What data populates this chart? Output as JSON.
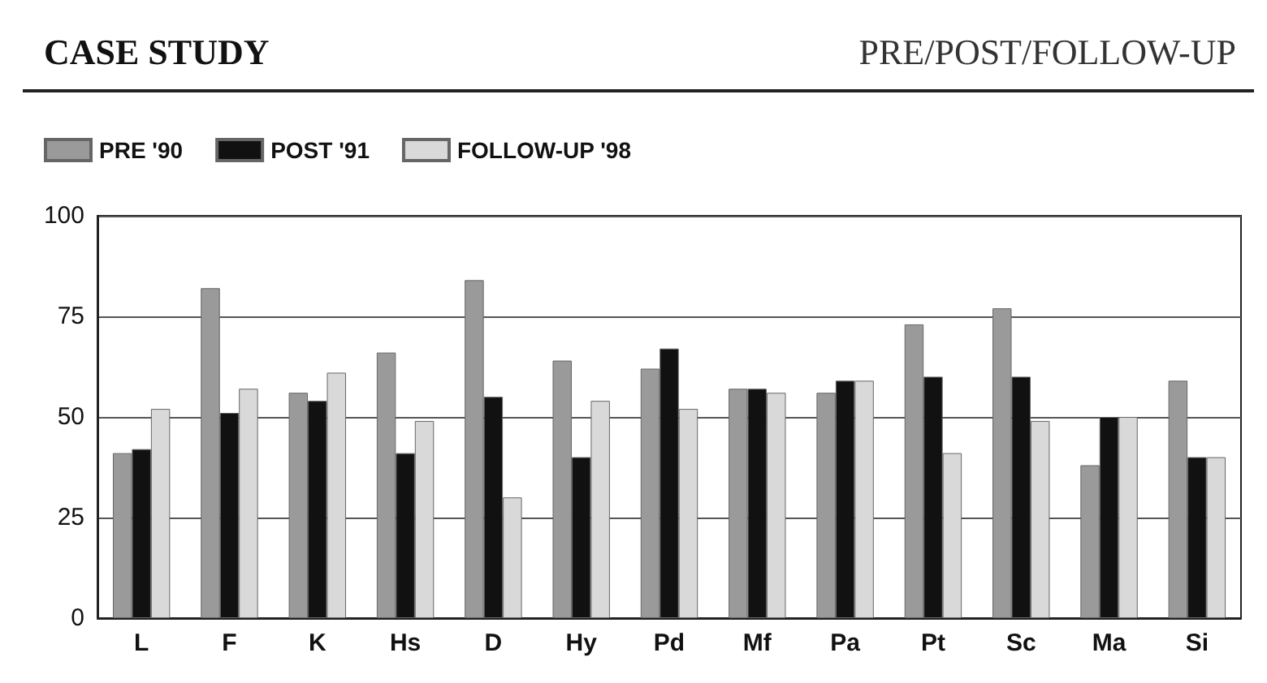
{
  "chart_data": {
    "type": "bar",
    "title": "CASE STUDY",
    "subtitle": "PRE/POST/FOLLOW-UP",
    "categories": [
      "L",
      "F",
      "K",
      "Hs",
      "D",
      "Hy",
      "Pd",
      "Mf",
      "Pa",
      "Pt",
      "Sc",
      "Ma",
      "Si"
    ],
    "series": [
      {
        "name": "PRE '90",
        "color": "#9a9a9a",
        "values": [
          41,
          82,
          56,
          66,
          84,
          64,
          62,
          57,
          56,
          73,
          77,
          38,
          59
        ]
      },
      {
        "name": "POST '91",
        "color": "#111111",
        "values": [
          42,
          51,
          54,
          41,
          55,
          40,
          67,
          57,
          59,
          60,
          60,
          50,
          40
        ]
      },
      {
        "name": "FOLLOW-UP '98",
        "color": "#d9d9d9",
        "values": [
          52,
          57,
          61,
          49,
          30,
          54,
          52,
          56,
          59,
          41,
          49,
          50,
          40
        ]
      }
    ],
    "ylim": [
      0,
      100
    ],
    "yticks": [
      0,
      25,
      50,
      75,
      100
    ],
    "grid": "y",
    "legend": "top left"
  }
}
